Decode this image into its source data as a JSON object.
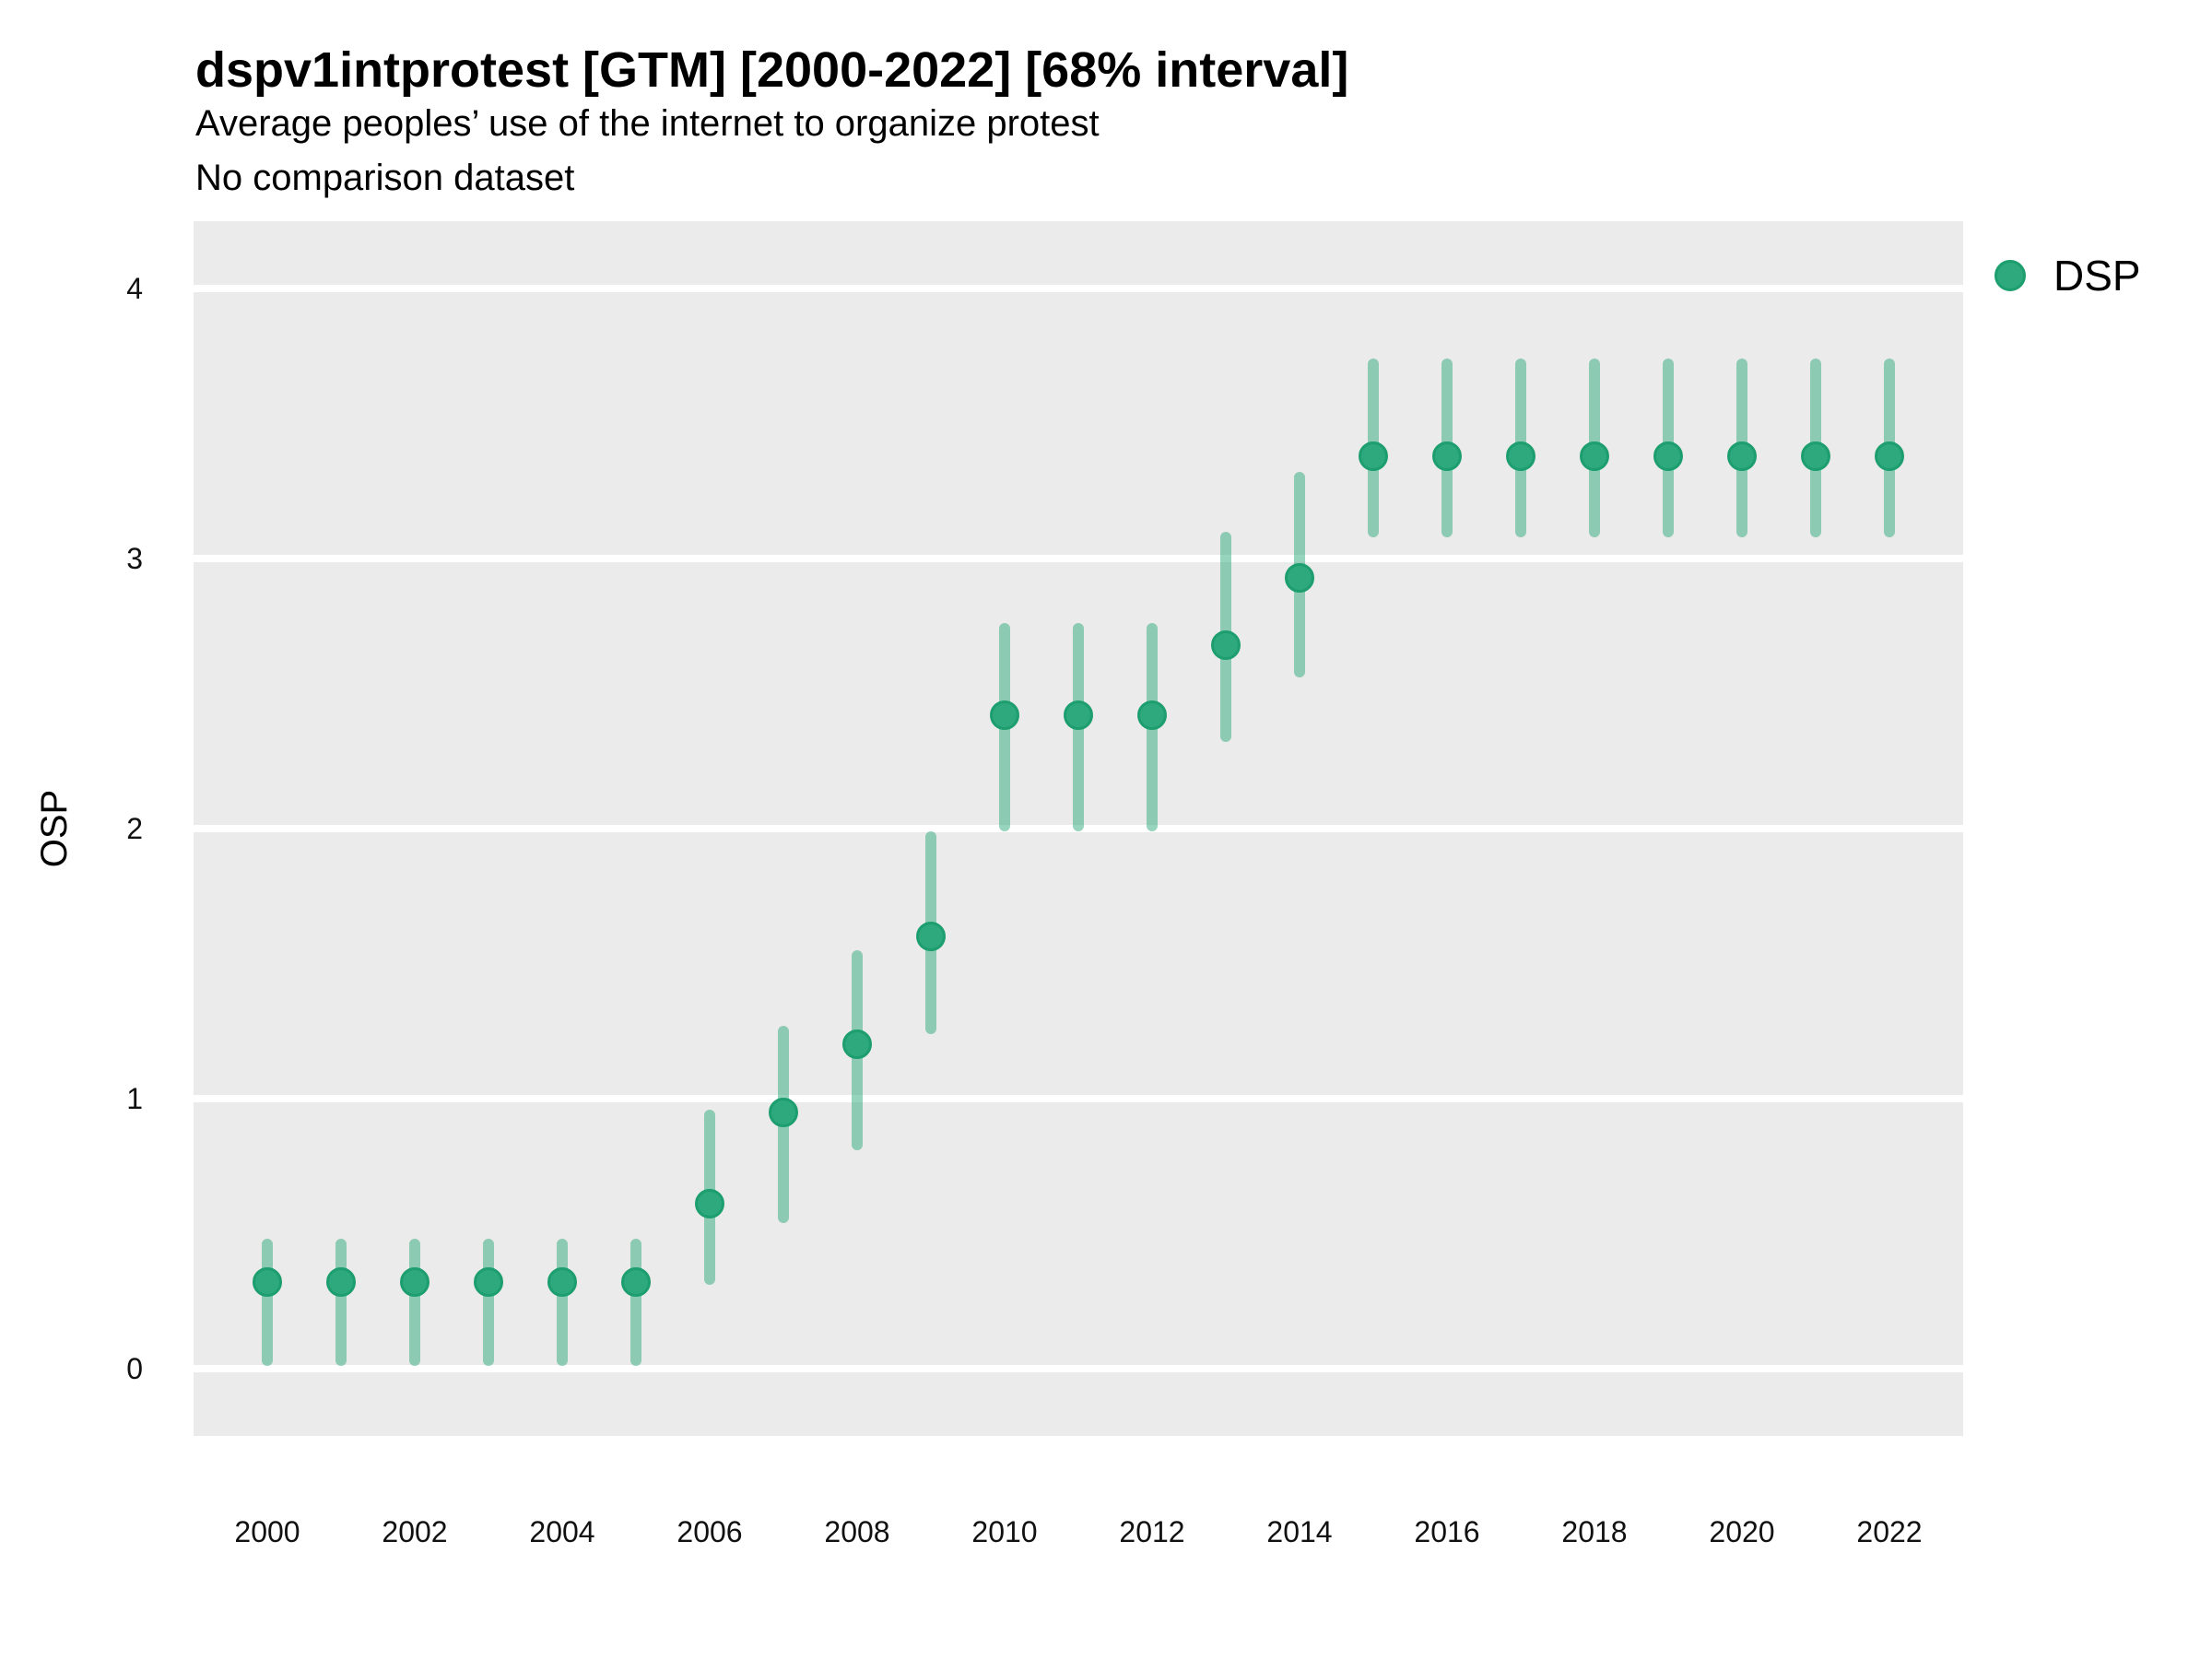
{
  "figure": {
    "title": "dspv1intprotest [GTM] [2000-2022] [68% interval]",
    "subtitle": "Average peoples’ use of the internet to organize protest",
    "caption": "No comparison dataset",
    "y_axis_title": "OSP"
  },
  "legend": {
    "items": [
      {
        "label": "DSP"
      }
    ]
  },
  "chart_data": {
    "type": "pointrange",
    "title": "dspv1intprotest [GTM] [2000-2022] [68% interval]",
    "subtitle": "Average peoples’ use of the internet to organize protest",
    "note": "No comparison dataset",
    "interval_level": "68%",
    "xlabel": "",
    "ylabel": "OSP",
    "x": [
      2000,
      2001,
      2002,
      2003,
      2004,
      2005,
      2006,
      2007,
      2008,
      2009,
      2010,
      2011,
      2012,
      2013,
      2014,
      2015,
      2016,
      2017,
      2018,
      2019,
      2020,
      2021,
      2022
    ],
    "series": [
      {
        "name": "DSP",
        "values": [
          0.32,
          0.32,
          0.32,
          0.32,
          0.32,
          0.32,
          0.61,
          0.95,
          1.2,
          1.6,
          2.42,
          2.42,
          2.42,
          2.68,
          2.93,
          3.38,
          3.38,
          3.38,
          3.38,
          3.38,
          3.38,
          3.38,
          3.38
        ],
        "lower": [
          0.01,
          0.01,
          0.01,
          0.01,
          0.01,
          0.01,
          0.31,
          0.54,
          0.81,
          1.24,
          1.99,
          1.99,
          1.99,
          2.32,
          2.56,
          3.08,
          3.08,
          3.08,
          3.08,
          3.08,
          3.08,
          3.08,
          3.08
        ],
        "upper": [
          0.48,
          0.48,
          0.48,
          0.48,
          0.48,
          0.48,
          0.96,
          1.27,
          1.55,
          1.99,
          2.76,
          2.76,
          2.76,
          3.1,
          3.32,
          3.74,
          3.74,
          3.74,
          3.74,
          3.74,
          3.74,
          3.74,
          3.74
        ]
      }
    ],
    "yticks": [
      0,
      1,
      2,
      3,
      4
    ],
    "xticks": [
      2000,
      2002,
      2004,
      2006,
      2008,
      2010,
      2012,
      2014,
      2016,
      2018,
      2020,
      2022
    ],
    "ylim": [
      0,
      4
    ],
    "grid": "horizontal-major-only",
    "legend_position": "right-top",
    "colors": {
      "point_fill": "#2EA87D",
      "point_stroke": "#1D9E6E",
      "interval": "rgba(47,169,124,0.5)",
      "panel_background": "#EBEBEB",
      "gridline": "#FFFFFF",
      "text": "#000000"
    }
  }
}
